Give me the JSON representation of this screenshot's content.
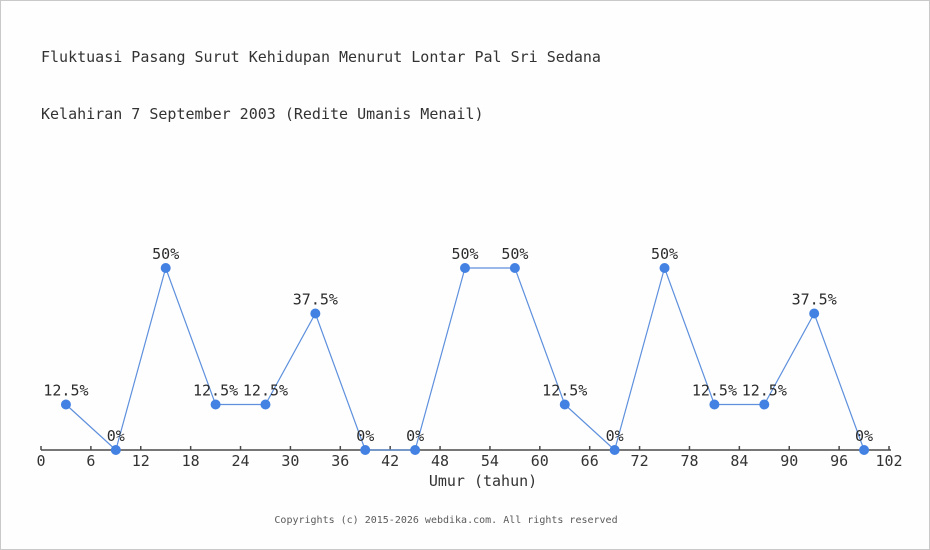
{
  "title": {
    "line1": "Fluktuasi Pasang Surut Kehidupan Menurut Lontar Pal Sri Sedana",
    "line2": "Kelahiran 7 September 2003 (Redite Umanis Menail)"
  },
  "footer": "Copyrights (c) 2015-2026 webdika.com. All rights reserved",
  "colors": {
    "line": "#5e90dd",
    "marker": "#4381e2",
    "axis": "#4a4a4a",
    "tick_label": "#333333",
    "point_label": "#2b2b2b",
    "title_text": "#333333",
    "footer_text": "#5a5a5a",
    "background": "#fefefe",
    "border": "#c9c9c9"
  },
  "chart_data": {
    "type": "line",
    "title": "Fluktuasi Pasang Surut Kehidupan Menurut Lontar Pal Sri Sedana Kelahiran 7 September 2003 (Redite Umanis Menail)",
    "xlabel": "Umur (tahun)",
    "ylabel": "",
    "x": [
      3,
      9,
      15,
      21,
      27,
      33,
      39,
      45,
      51,
      57,
      63,
      69,
      75,
      81,
      87,
      93,
      99
    ],
    "values": [
      12.5,
      0,
      50,
      12.5,
      12.5,
      37.5,
      0,
      0,
      50,
      50,
      12.5,
      0,
      50,
      12.5,
      12.5,
      37.5,
      0
    ],
    "point_labels": [
      "12.5%",
      "0%",
      "50%",
      "12.5%",
      "12.5%",
      "37.5%",
      "0%",
      "0%",
      "50%",
      "50%",
      "12.5%",
      "0%",
      "50%",
      "12.5%",
      "12.5%",
      "37.5%",
      "0%"
    ],
    "x_ticks": [
      0,
      6,
      12,
      18,
      24,
      30,
      36,
      42,
      48,
      54,
      60,
      66,
      72,
      78,
      84,
      90,
      96,
      102
    ],
    "xlim": [
      0,
      102
    ],
    "ylim": [
      0,
      62.5
    ],
    "grid": false,
    "legend": null,
    "markers": true
  }
}
